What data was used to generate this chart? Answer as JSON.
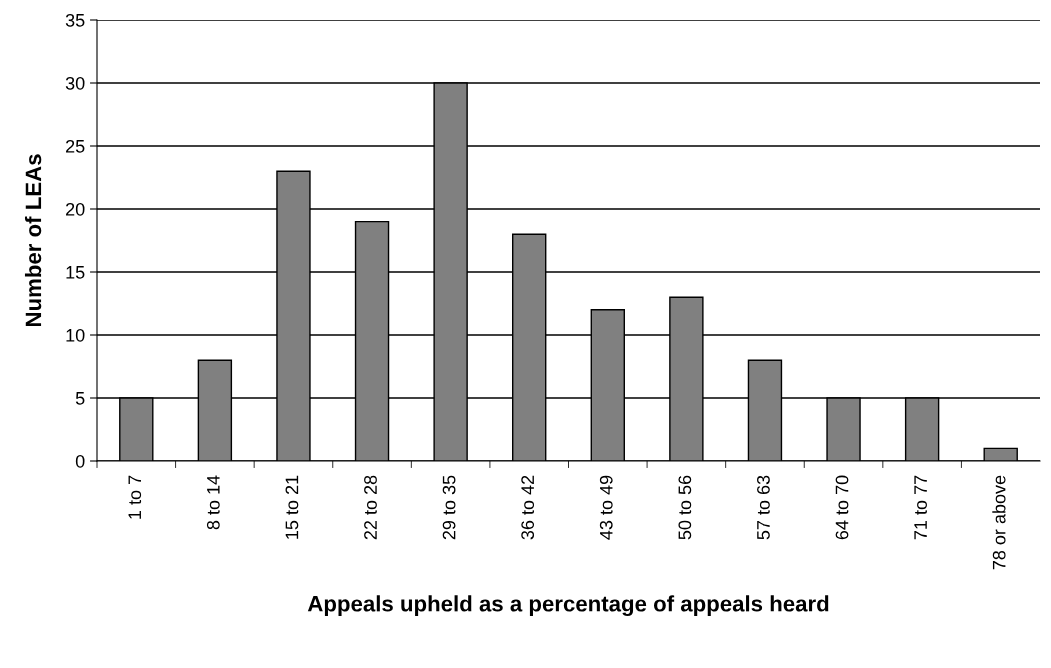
{
  "chart_data": {
    "type": "bar",
    "xlabel": "Appeals upheld as a percentage of appeals heard",
    "ylabel": "Number of LEAs",
    "categories": [
      "1 to 7",
      "8 to 14",
      "15 to 21",
      "22 to 28",
      "29 to 35",
      "36 to 42",
      "43 to 49",
      "50 to 56",
      "57 to 63",
      "64 to 70",
      "71 to 77",
      "78 or above"
    ],
    "values": [
      5,
      8,
      23,
      19,
      30,
      18,
      12,
      13,
      8,
      5,
      5,
      1
    ],
    "color": "#808080",
    "ylim": [
      0,
      35
    ],
    "yticks": [
      0,
      5,
      10,
      15,
      20,
      25,
      30,
      35
    ],
    "grid": "y"
  }
}
